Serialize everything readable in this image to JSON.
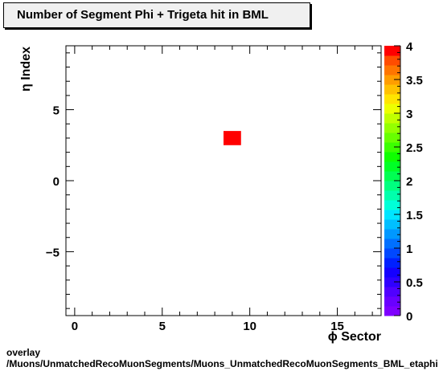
{
  "title": "Number of Segment Phi + Trigeta hit in BML",
  "footer": {
    "line1": "overlay",
    "line2": "/Muons/UnmatchedRecoMuonSegments/Muons_UnmatchedRecoMuonSegments_BML_etaphi"
  },
  "chart_data": {
    "type": "heatmap",
    "title": "Number of Segment Phi + Trigeta hit in BML",
    "xlabel": "ϕ Sector",
    "ylabel": "η Index",
    "xlim": [
      -0.5,
      17.5
    ],
    "ylim": [
      -9.5,
      9.5
    ],
    "x_ticks": [
      0,
      5,
      10,
      15
    ],
    "x_tick_labels": [
      "0",
      "5",
      "10",
      "15"
    ],
    "y_ticks": [
      -5,
      0,
      5
    ],
    "y_tick_labels": [
      "−5",
      "0",
      "5"
    ],
    "z_range": [
      0,
      4
    ],
    "colorbar_ticks": [
      0,
      0.5,
      1,
      1.5,
      2,
      2.5,
      3,
      3.5,
      4
    ],
    "colorbar_labels": [
      "0",
      "0.5",
      "1",
      "1.5",
      "2",
      "2.5",
      "3",
      "3.5",
      "4"
    ],
    "cells": [
      {
        "x": 9,
        "y": 3,
        "value": 4
      }
    ],
    "palette": [
      "#7f00ff",
      "#6a00ff",
      "#5000ff",
      "#2f00ff",
      "#1400ff",
      "#0020ff",
      "#0048ff",
      "#0070ff",
      "#0098ff",
      "#00bfff",
      "#00e5ff",
      "#00ffd8",
      "#00ffac",
      "#00ff7f",
      "#00ff52",
      "#00ff26",
      "#0fff00",
      "#3bff00",
      "#68ff00",
      "#94ff00",
      "#c1ff00",
      "#edff00",
      "#ffe400",
      "#ffc100",
      "#ff9d00",
      "#ff7500",
      "#ff4c00",
      "#ff0000"
    ]
  }
}
